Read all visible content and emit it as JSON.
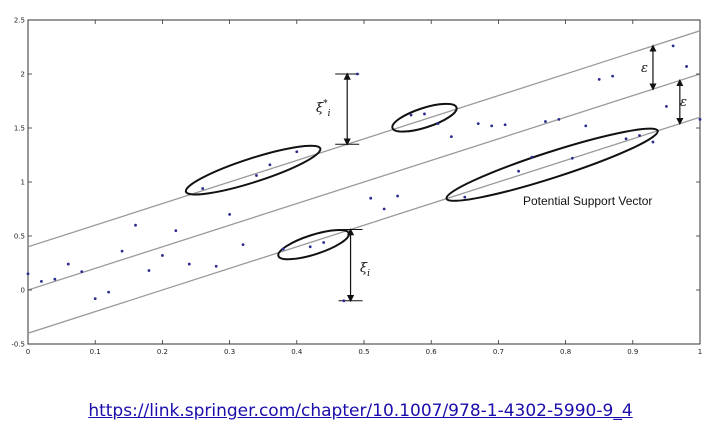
{
  "chart_data": {
    "type": "scatter",
    "title": "",
    "xlabel": "",
    "ylabel": "",
    "xlim": [
      0,
      1
    ],
    "ylim": [
      -0.5,
      2.5
    ],
    "grid": false,
    "legend": "none",
    "x_ticks": [
      "0",
      "0.1",
      "0.2",
      "0.3",
      "0.4",
      "0.5",
      "0.6",
      "0.7",
      "0.8",
      "0.9",
      "1"
    ],
    "y_ticks": [
      "-0.5",
      "0",
      "0.5",
      "1",
      "1.5",
      "2",
      "2.5"
    ],
    "regression_line": {
      "intercept": 0.0,
      "slope": 2.0
    },
    "epsilon_tube": {
      "upper_intercept": 0.4,
      "lower_intercept": -0.4,
      "slope": 2.0
    },
    "points": [
      {
        "x": 0.0,
        "y": 0.15
      },
      {
        "x": 0.02,
        "y": 0.08
      },
      {
        "x": 0.04,
        "y": 0.1
      },
      {
        "x": 0.06,
        "y": 0.24
      },
      {
        "x": 0.08,
        "y": 0.17
      },
      {
        "x": 0.1,
        "y": -0.08
      },
      {
        "x": 0.12,
        "y": -0.02
      },
      {
        "x": 0.14,
        "y": 0.36
      },
      {
        "x": 0.16,
        "y": 0.6
      },
      {
        "x": 0.18,
        "y": 0.18
      },
      {
        "x": 0.2,
        "y": 0.32
      },
      {
        "x": 0.22,
        "y": 0.55
      },
      {
        "x": 0.24,
        "y": 0.24
      },
      {
        "x": 0.26,
        "y": 0.94
      },
      {
        "x": 0.28,
        "y": 0.22
      },
      {
        "x": 0.3,
        "y": 0.7
      },
      {
        "x": 0.32,
        "y": 0.42
      },
      {
        "x": 0.34,
        "y": 1.06
      },
      {
        "x": 0.36,
        "y": 1.16
      },
      {
        "x": 0.38,
        "y": 0.38
      },
      {
        "x": 0.4,
        "y": 1.28
      },
      {
        "x": 0.42,
        "y": 0.4
      },
      {
        "x": 0.44,
        "y": 0.44
      },
      {
        "x": 0.47,
        "y": -0.1
      },
      {
        "x": 0.49,
        "y": 2.0
      },
      {
        "x": 0.51,
        "y": 0.85
      },
      {
        "x": 0.53,
        "y": 0.75
      },
      {
        "x": 0.55,
        "y": 0.87
      },
      {
        "x": 0.57,
        "y": 1.62
      },
      {
        "x": 0.59,
        "y": 1.63
      },
      {
        "x": 0.61,
        "y": 1.54
      },
      {
        "x": 0.63,
        "y": 1.42
      },
      {
        "x": 0.65,
        "y": 0.86
      },
      {
        "x": 0.67,
        "y": 1.54
      },
      {
        "x": 0.69,
        "y": 1.52
      },
      {
        "x": 0.71,
        "y": 1.53
      },
      {
        "x": 0.73,
        "y": 1.1
      },
      {
        "x": 0.75,
        "y": 1.23
      },
      {
        "x": 0.77,
        "y": 1.56
      },
      {
        "x": 0.79,
        "y": 1.58
      },
      {
        "x": 0.81,
        "y": 1.22
      },
      {
        "x": 0.83,
        "y": 1.52
      },
      {
        "x": 0.85,
        "y": 1.95
      },
      {
        "x": 0.87,
        "y": 1.98
      },
      {
        "x": 0.89,
        "y": 1.4
      },
      {
        "x": 0.91,
        "y": 1.43
      },
      {
        "x": 0.93,
        "y": 1.37
      },
      {
        "x": 0.95,
        "y": 1.7
      },
      {
        "x": 0.96,
        "y": 2.26
      },
      {
        "x": 0.98,
        "y": 2.07
      },
      {
        "x": 1.0,
        "y": 1.58
      }
    ],
    "annotations": {
      "xi_star_label": "ξ",
      "xi_star_sup": "*",
      "xi_star_sub": "i",
      "xi_label": "ξ",
      "xi_sub": "i",
      "epsilon_label": "ε",
      "support_vector_label": "Potential Support Vector"
    },
    "arrows": {
      "xi_star": {
        "x": 0.475,
        "y_from": 2.0,
        "y_to": 1.35
      },
      "xi": {
        "x": 0.48,
        "y_from": 0.56,
        "y_to": -0.1
      },
      "epsilon_upper": {
        "x": 0.93,
        "y_from": 2.26,
        "y_to": 1.86
      },
      "epsilon_lower": {
        "x": 0.97,
        "y_from": 1.94,
        "y_to": 1.54
      }
    },
    "highlight_ellipses": [
      {
        "cx": 0.335,
        "cy": 1.11,
        "rx": 0.105,
        "ry": 0.11
      },
      {
        "cx": 0.59,
        "cy": 1.595,
        "rx": 0.05,
        "ry": 0.09
      },
      {
        "cx": 0.425,
        "cy": 0.42,
        "rx": 0.055,
        "ry": 0.09
      },
      {
        "cx": 0.78,
        "cy": 1.16,
        "rx": 0.165,
        "ry": 0.12
      }
    ]
  },
  "source_link": "https://link.springer.com/chapter/10.1007/978-1-4302-5990-9_4",
  "colors": {
    "point": "#2b2b8f",
    "line": "#9a9a9a",
    "ellipse": "#111111",
    "axis": "#333333"
  }
}
